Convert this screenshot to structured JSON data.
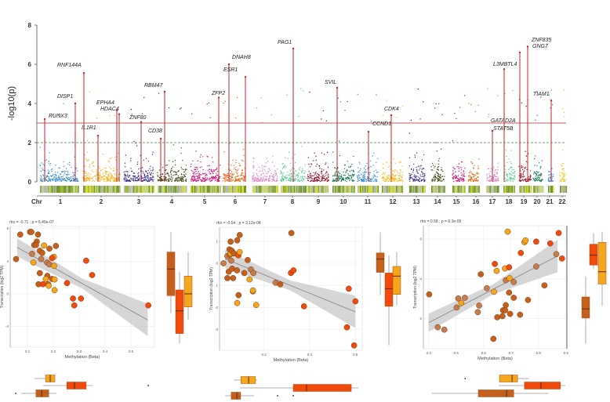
{
  "chart_data": [
    {
      "type": "scatter",
      "subtype": "manhattan",
      "ylabel": "-log10(p)",
      "xlabel": "Chr",
      "ylim": [
        0,
        8
      ],
      "yticks": [
        "0",
        "2",
        "4",
        "6",
        "8"
      ],
      "chromosomes": [
        "1",
        "2",
        "3",
        "4",
        "5",
        "6",
        "7",
        "8",
        "9",
        "10",
        "11",
        "12",
        "13",
        "14",
        "15",
        "16",
        "17",
        "18",
        "19",
        "20",
        "21",
        "22"
      ],
      "chromosome_colors": [
        "#3b8fd4",
        "#f2b31e",
        "#3a2c8c",
        "#444d1e",
        "#d3137c",
        "#ea6a18",
        "#d98bc9",
        "#6ccaa0",
        "#8b0f2e",
        "#1e7a5a",
        "#3b8fd4",
        "#f2c11e",
        "#3a2c8c",
        "#444d1e",
        "#d3137c",
        "#ea6a18",
        "#d98bc9",
        "#6ccaa0",
        "#8b0f2e",
        "#1e7a5a",
        "#3b8fd4",
        "#f2c11e"
      ],
      "significance_line": {
        "value": 3,
        "style": "solid",
        "color": "#b2262c"
      },
      "suggestive_line": {
        "value": 2,
        "style": "dashed",
        "color": "#3f7f4a"
      },
      "highlighted_genes": [
        {
          "gene": "RUNX3",
          "chr": "1",
          "value": 3.2
        },
        {
          "gene": "DISP1",
          "chr": "1",
          "value": 4.0
        },
        {
          "gene": "RNF144A",
          "chr": "2",
          "value": 5.55
        },
        {
          "gene": "IL1R1",
          "chr": "2",
          "value": 2.35
        },
        {
          "gene": "EPHA4",
          "chr": "2",
          "value": 3.65
        },
        {
          "gene": "HDAC4",
          "chr": "2",
          "value": 3.45
        },
        {
          "gene": "ZNF80",
          "chr": "3",
          "value": 3.05
        },
        {
          "gene": "CD38",
          "chr": "4",
          "value": 2.2
        },
        {
          "gene": "RBM47",
          "chr": "4",
          "value": 4.6
        },
        {
          "gene": "ZFP2",
          "chr": "5",
          "value": 4.3
        },
        {
          "gene": "DNAH8",
          "chr": "6",
          "value": 6.0
        },
        {
          "gene": "ESR1",
          "chr": "6",
          "value": 5.35
        },
        {
          "gene": "PAG1",
          "chr": "8",
          "value": 6.8
        },
        {
          "gene": "SVIL",
          "chr": "10",
          "value": 4.8
        },
        {
          "gene": "CCND1",
          "chr": "11",
          "value": 2.55
        },
        {
          "gene": "CDK4",
          "chr": "12",
          "value": 3.4
        },
        {
          "gene": "GATAD2A",
          "chr": "17",
          "value": 2.6
        },
        {
          "gene": "STAT5B",
          "chr": "17",
          "value": 2.6
        },
        {
          "gene": "L3MBTL4",
          "chr": "18",
          "value": 5.75
        },
        {
          "gene": "GNG7",
          "chr": "19",
          "value": 6.6
        },
        {
          "gene": "ZNF835",
          "chr": "19",
          "value": 6.9
        },
        {
          "gene": "TIAM1",
          "chr": "21",
          "value": 4.15
        }
      ]
    },
    {
      "type": "scatter",
      "title": "rho = -0.71 ; p = 6.49e-07",
      "xlabel": "Methylation (Beta)",
      "ylabel": "Transcription (log2 TPM)",
      "xticks": [
        "0.1",
        "0.2",
        "0.3",
        "0.4",
        "0.5"
      ],
      "yticks": [
        "8",
        "4",
        "0",
        "-4"
      ],
      "group_colors": {
        "a": "#c4601c",
        "b": "#f04a0c",
        "c": "#f6a61a",
        "d": "#c27c4e"
      },
      "points": [
        [
          0.056,
          4.26,
          "a"
        ],
        [
          0.072,
          7.26,
          "a"
        ],
        [
          0.11,
          7.58,
          "a"
        ],
        [
          0.115,
          7.58,
          "a"
        ],
        [
          0.141,
          7.26,
          "a"
        ],
        [
          0.136,
          6.4,
          "a"
        ],
        [
          0.126,
          5.98,
          "a"
        ],
        [
          0.133,
          5.98,
          "a"
        ],
        [
          0.164,
          5.92,
          "c"
        ],
        [
          0.21,
          5.86,
          "a"
        ],
        [
          0.185,
          5.54,
          "a"
        ],
        [
          0.148,
          5.28,
          "a"
        ],
        [
          0.157,
          5.02,
          "a"
        ],
        [
          0.118,
          4.9,
          "d"
        ],
        [
          0.202,
          4.54,
          "c"
        ],
        [
          0.195,
          4.38,
          "b"
        ],
        [
          0.153,
          4.26,
          "d"
        ],
        [
          0.123,
          3.84,
          "c"
        ],
        [
          0.176,
          3.84,
          "d"
        ],
        [
          0.185,
          3.62,
          "d"
        ],
        [
          0.203,
          3.42,
          "c"
        ],
        [
          0.327,
          4.06,
          "b"
        ],
        [
          0.35,
          2.3,
          "b"
        ],
        [
          0.148,
          2.53,
          "a"
        ],
        [
          0.177,
          2.21,
          "a"
        ],
        [
          0.171,
          1.82,
          "c"
        ],
        [
          0.195,
          1.82,
          "a"
        ],
        [
          0.205,
          1.76,
          "c"
        ],
        [
          0.143,
          1.18,
          "a"
        ],
        [
          0.16,
          1.18,
          "b"
        ],
        [
          0.18,
          1.18,
          "a"
        ],
        [
          0.182,
          0.99,
          "c"
        ],
        [
          0.253,
          1.31,
          "b"
        ],
        [
          0.205,
          0.45,
          "c"
        ],
        [
          0.276,
          -0.58,
          "b"
        ],
        [
          0.307,
          -0.58,
          "b"
        ],
        [
          0.281,
          -1.41,
          "b"
        ],
        [
          0.567,
          -1.41,
          "b"
        ]
      ],
      "fit": [
        [
          0.06,
          5.7
        ],
        [
          0.565,
          -3.2
        ]
      ],
      "y_boxplots": [
        {
          "group": "a",
          "whisker": [
            -2.34,
            7.58
          ],
          "box": [
            -0.22,
            5.12
          ],
          "median": 3.04
        },
        {
          "group": "b",
          "whisker": [
            -6.08,
            2.66
          ],
          "box": [
            -4.86,
            0.48
          ],
          "median": -2.08
        },
        {
          "group": "c",
          "whisker": [
            -3.2,
            5.12
          ],
          "box": [
            -1.6,
            2.18
          ],
          "median": 0.0
        }
      ],
      "x_boxplots": [
        {
          "group": "c",
          "whisker": [
            0.127,
            0.206
          ],
          "box": [
            0.17,
            0.206
          ],
          "median": 0.188,
          "outliers": []
        },
        {
          "group": "b",
          "whisker": [
            0.161,
            0.352
          ],
          "box": [
            0.252,
            0.327
          ],
          "median": 0.282,
          "outliers": [
            0.567
          ]
        },
        {
          "group": "a",
          "whisker": [
            0.076,
            0.212
          ],
          "box": [
            0.133,
            0.182
          ],
          "median": 0.155,
          "outliers": [
            0.055
          ]
        }
      ]
    },
    {
      "type": "scatter",
      "title": "rho = -0.54 ; p = 3.12e-04",
      "xlabel": "Methylation (Beta)",
      "ylabel": "Transcription (log2 TPM)",
      "xticks": [
        "0.2",
        "0.4",
        "0.6"
      ],
      "yticks": [
        "1",
        "0",
        "-1",
        "-2",
        "-3"
      ],
      "points": [
        [
          0.023,
          0,
          "d"
        ],
        [
          0.04,
          0.33,
          "d"
        ],
        [
          0.04,
          -0.67,
          "a"
        ],
        [
          0.046,
          -0.38,
          "a"
        ],
        [
          0.049,
          0.63,
          "a"
        ],
        [
          0.051,
          0.39,
          "a"
        ],
        [
          0.054,
          0.98,
          "a"
        ],
        [
          0.055,
          0.45,
          "c"
        ],
        [
          0.057,
          0.12,
          "d"
        ],
        [
          0.059,
          0.57,
          "a"
        ],
        [
          0.061,
          -0.24,
          "a"
        ],
        [
          0.065,
          -0.67,
          "a"
        ],
        [
          0.069,
          0.45,
          "a"
        ],
        [
          0.082,
          -0.32,
          "a"
        ],
        [
          0.083,
          1.04,
          "a"
        ],
        [
          0.088,
          0.36,
          "b"
        ],
        [
          0.089,
          -1.44,
          "a"
        ],
        [
          0.094,
          1.28,
          "a"
        ],
        [
          0.094,
          0.51,
          "c"
        ],
        [
          0.083,
          -1.8,
          "c"
        ],
        [
          0.114,
          -0.44,
          "a"
        ],
        [
          0.129,
          0.15,
          "a"
        ],
        [
          0.137,
          -0.73,
          "c"
        ],
        [
          0.143,
          -0.28,
          "d"
        ],
        [
          0.152,
          -1.27,
          "a"
        ],
        [
          0.154,
          -0.44,
          "d"
        ],
        [
          0.152,
          -1.23,
          "c"
        ],
        [
          0.166,
          -1.89,
          "c"
        ],
        [
          0.251,
          -0.88,
          "d"
        ],
        [
          0.271,
          -0.95,
          "a"
        ],
        [
          0.32,
          1.37,
          "a"
        ],
        [
          0.318,
          -0.44,
          "b"
        ],
        [
          0.329,
          -0.32,
          "b"
        ],
        [
          0.375,
          -1.95,
          "b"
        ],
        [
          0.563,
          -2.9,
          "b"
        ],
        [
          0.571,
          -1.15,
          "b"
        ],
        [
          0.6,
          -1.72,
          "b"
        ],
        [
          0.594,
          -3.72,
          "b"
        ]
      ],
      "fit": [
        [
          0.03,
          0.2
        ],
        [
          0.6,
          -2.2
        ]
      ],
      "y_boxplots": [
        {
          "group": "a",
          "whisker": [
            -1.44,
            1.4
          ],
          "box": [
            -0.41,
            0.47
          ],
          "median": 0.19
        },
        {
          "group": "b",
          "whisker": [
            -3.72,
            0.36
          ],
          "box": [
            -1.95,
            -0.44
          ],
          "median": -1.15
        },
        {
          "group": "c",
          "whisker": [
            -1.89,
            0.51
          ],
          "box": [
            -1.41,
            -0.14
          ],
          "median": -0.58
        }
      ],
      "x_boxplots": [
        {
          "group": "c",
          "whisker": [
            0.068,
            0.17
          ],
          "box": [
            0.099,
            0.163
          ],
          "median": 0.133,
          "outliers": []
        },
        {
          "group": "b",
          "whisker": [
            0.095,
            0.613
          ],
          "box": [
            0.328,
            0.582
          ],
          "median": 0.386,
          "outliers": []
        },
        {
          "group": "a",
          "whisker": [
            0.03,
            0.157
          ],
          "box": [
            0.057,
            0.098
          ],
          "median": 0.082,
          "outliers": [
            0.26,
            0.328
          ]
        }
      ]
    },
    {
      "type": "scatter",
      "title": "rho = 0.58 ; p = 8.3e-05",
      "xlabel": "Methylation (Beta)",
      "ylabel": "Transcription (log2 TPM)",
      "xticks": [
        "0.4",
        "0.5",
        "0.6",
        "0.7",
        "0.8",
        "0.9"
      ],
      "yticks": [
        "6",
        "4",
        "2"
      ],
      "points": [
        [
          0.402,
          3.22,
          "a"
        ],
        [
          0.433,
          1.57,
          "d"
        ],
        [
          0.457,
          1.45,
          "d"
        ],
        [
          0.502,
          2.56,
          "d"
        ],
        [
          0.508,
          3.02,
          "d"
        ],
        [
          0.519,
          2.79,
          "c"
        ],
        [
          0.532,
          3.05,
          "d"
        ],
        [
          0.579,
          2.33,
          "d"
        ],
        [
          0.584,
          2.66,
          "d"
        ],
        [
          0.59,
          4.23,
          "a"
        ],
        [
          0.612,
          3.53,
          "d"
        ],
        [
          0.636,
          0.99,
          "a"
        ],
        [
          0.638,
          3.35,
          "c"
        ],
        [
          0.641,
          4.75,
          "b"
        ],
        [
          0.648,
          4.4,
          "c"
        ],
        [
          0.65,
          2.07,
          "a"
        ],
        [
          0.669,
          2.13,
          "a"
        ],
        [
          0.671,
          2.42,
          "a"
        ],
        [
          0.679,
          2.42,
          "a"
        ],
        [
          0.681,
          2.68,
          "a"
        ],
        [
          0.678,
          4.52,
          "c"
        ],
        [
          0.681,
          3.93,
          "d"
        ],
        [
          0.688,
          6.37,
          "c"
        ],
        [
          0.693,
          4.58,
          "b"
        ],
        [
          0.693,
          3.31,
          "a"
        ],
        [
          0.695,
          4.03,
          "c"
        ],
        [
          0.697,
          2.24,
          "a"
        ],
        [
          0.71,
          3.84,
          "d"
        ],
        [
          0.71,
          3.05,
          "a"
        ],
        [
          0.733,
          2.2,
          "a"
        ],
        [
          0.736,
          5.3,
          "b"
        ],
        [
          0.749,
          5.84,
          "c"
        ],
        [
          0.753,
          5.93,
          "c"
        ],
        [
          0.762,
          2.94,
          "a"
        ],
        [
          0.792,
          5.87,
          "b"
        ],
        [
          0.792,
          4.62,
          "d"
        ],
        [
          0.822,
          3.67,
          "a"
        ],
        [
          0.843,
          5.78,
          "b"
        ],
        [
          0.865,
          5.24,
          "d"
        ],
        [
          0.874,
          6.3,
          "b"
        ],
        [
          0.886,
          5.02,
          "b"
        ]
      ],
      "fit": [
        [
          0.4,
          1.8
        ],
        [
          0.87,
          5.15
        ]
      ],
      "y_boxplots": [
        {
          "group": "a",
          "whisker": [
            0.75,
            4.12
          ],
          "box": [
            2.03,
            3.09
          ],
          "median": 2.49
        },
        {
          "group": "b",
          "whisker": [
            4.52,
            6.3
          ],
          "box": [
            4.69,
            5.74
          ],
          "median": 5.19
        },
        {
          "group": "c",
          "whisker": [
            2.63,
            6.37
          ],
          "box": [
            3.74,
            5.83
          ],
          "median": 4.36
        }
      ],
      "x_boxplots": [
        {
          "group": "c",
          "whisker": [
            0.658,
            0.767
          ],
          "box": [
            0.658,
            0.724
          ],
          "median": 0.704,
          "outliers": [
            0.533
          ]
        },
        {
          "group": "b",
          "whisker": [
            0.655,
            0.898
          ],
          "box": [
            0.749,
            0.88
          ],
          "median": 0.809,
          "outliers": []
        },
        {
          "group": "a",
          "whisker": [
            0.411,
            0.836
          ],
          "box": [
            0.581,
            0.71
          ],
          "median": 0.684,
          "outliers": []
        }
      ]
    }
  ]
}
